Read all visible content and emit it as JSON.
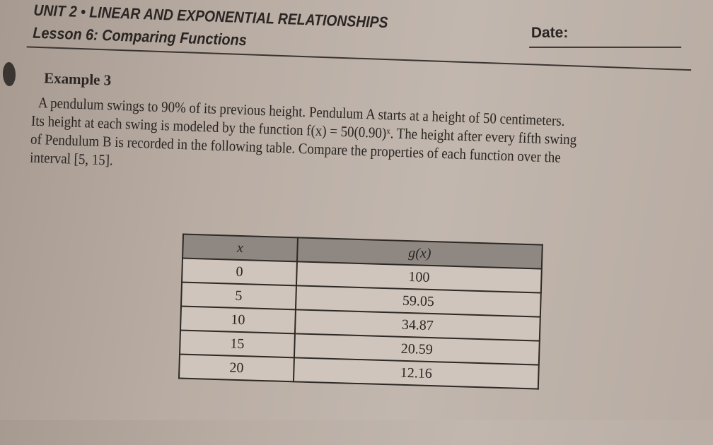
{
  "header": {
    "unit_title": "UNIT 2 • LINEAR AND EXPONENTIAL RELATIONSHIPS",
    "date_label": "Date:",
    "lesson_title": "Lesson 6: Comparing Functions"
  },
  "example": {
    "heading": "Example 3",
    "lines": [
      "A pendulum swings to 90% of its previous height. Pendulum A starts at a height of 50 centimeters.",
      "Its height at each swing is modeled by the function f(x) = 50(0.90)ˣ. The height after every fifth swing",
      "of Pendulum B is recorded in the following table. Compare the properties of each function over the",
      "interval [5, 15]."
    ]
  },
  "table": {
    "headers": [
      "x",
      "g(x)"
    ],
    "rows": [
      [
        "0",
        "100"
      ],
      [
        "5",
        "59.05"
      ],
      [
        "10",
        "34.87"
      ],
      [
        "15",
        "20.59"
      ],
      [
        "20",
        "12.16"
      ]
    ]
  }
}
